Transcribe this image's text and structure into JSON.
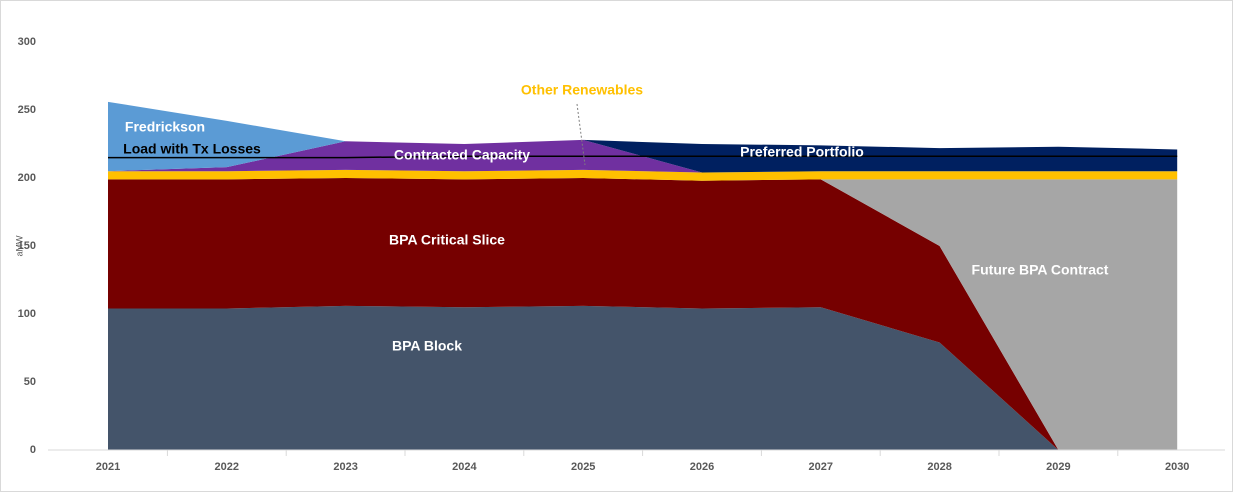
{
  "chart_data": {
    "type": "stacked_area",
    "y_label": "aMW",
    "categories": [
      "2021",
      "2022",
      "2023",
      "2024",
      "2025",
      "2026",
      "2027",
      "2028",
      "2029",
      "2030"
    ],
    "ylim": [
      0,
      300
    ],
    "yticks": [
      0,
      50,
      100,
      150,
      200,
      250,
      300
    ],
    "series": [
      {
        "name": "BPA Block",
        "color": "#44546A",
        "values": [
          104,
          104,
          106,
          105,
          106,
          104,
          105,
          79,
          0,
          0
        ]
      },
      {
        "name": "BPA Critical Slice",
        "color": "#760000",
        "values": [
          95,
          95,
          94,
          94,
          94,
          94,
          94,
          71,
          0,
          0
        ]
      },
      {
        "name": "Future BPA Contract",
        "color": "#A6A6A6",
        "values": [
          0,
          0,
          0,
          0,
          0,
          0,
          0,
          49,
          199,
          199
        ]
      },
      {
        "name": "Other Renewables",
        "color": "#FFC000",
        "values": [
          6,
          6,
          6,
          6,
          6,
          6,
          6,
          6,
          6,
          6
        ]
      },
      {
        "name": "Contracted Capacity",
        "color": "#7030A0",
        "values": [
          0,
          3,
          21,
          20,
          22,
          0,
          0,
          0,
          0,
          0
        ]
      },
      {
        "name": "Fredrickson",
        "color": "#5B9BD5",
        "values": [
          51,
          34,
          0,
          0,
          0,
          0,
          0,
          0,
          0,
          0
        ]
      },
      {
        "name": "Preferred Portfolio",
        "color": "#002060",
        "values": [
          0,
          0,
          0,
          0,
          0,
          21,
          19,
          17,
          18,
          16
        ]
      }
    ],
    "line": {
      "name": "Load with Tx Losses",
      "color": "#000000",
      "values": [
        215,
        215,
        215,
        216,
        216,
        216,
        216,
        216,
        216,
        216
      ]
    }
  }
}
